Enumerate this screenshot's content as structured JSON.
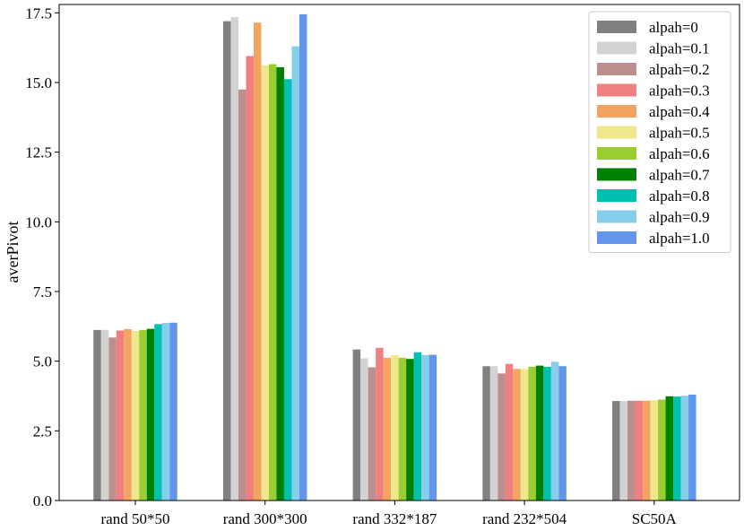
{
  "chart_data": {
    "type": "bar",
    "xlabel": "",
    "ylabel": "averPivot",
    "ylim": [
      0,
      17.8
    ],
    "yticks": [
      0.0,
      2.5,
      5.0,
      7.5,
      10.0,
      12.5,
      15.0,
      17.5
    ],
    "ytick_labels": [
      "0.0",
      "2.5",
      "5.0",
      "7.5",
      "10.0",
      "12.5",
      "15.0",
      "17.5"
    ],
    "categories": [
      "rand 50*50",
      "rand 300*300",
      "rand 332*187",
      "rand 232*504",
      "SC50A"
    ],
    "legend_position": "top-right",
    "grid": false,
    "series": [
      {
        "name": "alpah=0",
        "color": "#808080",
        "values": [
          6.12,
          17.2,
          5.42,
          4.82,
          3.57
        ]
      },
      {
        "name": "alpah=0.1",
        "color": "#d3d3d3",
        "values": [
          6.12,
          17.35,
          5.1,
          4.82,
          3.57
        ]
      },
      {
        "name": "alpah=0.2",
        "color": "#bc8f8f",
        "values": [
          5.85,
          14.75,
          4.78,
          4.56,
          3.58
        ]
      },
      {
        "name": "alpah=0.3",
        "color": "#f08080",
        "values": [
          6.1,
          15.95,
          5.48,
          4.9,
          3.58
        ]
      },
      {
        "name": "alpah=0.4",
        "color": "#f4a460",
        "values": [
          6.15,
          17.15,
          5.12,
          4.72,
          3.58
        ]
      },
      {
        "name": "alpah=0.5",
        "color": "#f0e68c",
        "values": [
          6.08,
          15.62,
          5.22,
          4.72,
          3.6
        ]
      },
      {
        "name": "alpah=0.6",
        "color": "#9acd32",
        "values": [
          6.12,
          15.66,
          5.12,
          4.8,
          3.62
        ]
      },
      {
        "name": "alpah=0.7",
        "color": "#008000",
        "values": [
          6.16,
          15.55,
          5.08,
          4.84,
          3.74
        ]
      },
      {
        "name": "alpah=0.8",
        "color": "#00c0b0",
        "values": [
          6.33,
          15.12,
          5.32,
          4.8,
          3.73
        ]
      },
      {
        "name": "alpah=0.9",
        "color": "#87ceeb",
        "values": [
          6.37,
          16.3,
          5.22,
          4.98,
          3.76
        ]
      },
      {
        "name": "alpah=1.0",
        "color": "#6495ed",
        "values": [
          6.38,
          17.45,
          5.23,
          4.82,
          3.8
        ]
      }
    ]
  }
}
